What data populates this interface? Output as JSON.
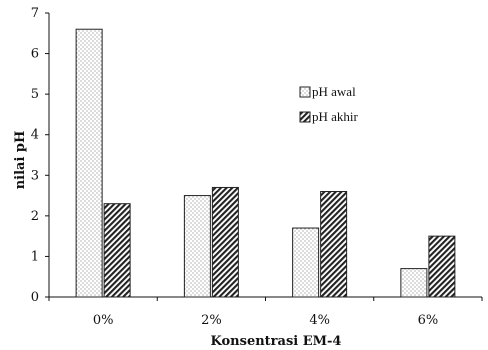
{
  "chart_data": {
    "type": "bar",
    "title": "",
    "xlabel": "Konsentrasi EM-4",
    "ylabel": "nilai pH",
    "categories": [
      "0%",
      "2%",
      "4%",
      "6%"
    ],
    "series": [
      {
        "name": "pH awal",
        "values": [
          6.6,
          2.5,
          1.7,
          0.7
        ],
        "pattern": "dots"
      },
      {
        "name": "pH akhir",
        "values": [
          2.3,
          2.7,
          2.6,
          1.5
        ],
        "pattern": "diagonal-hatch"
      }
    ],
    "ylim": [
      0,
      7
    ],
    "yticks": [
      0,
      1,
      2,
      3,
      4,
      5,
      6,
      7
    ],
    "grid": false,
    "legend_position": "center-right",
    "colors": {
      "axis": "#111111",
      "bar_stroke": "#222222",
      "dots": "#555555",
      "hatch": "#222222"
    }
  }
}
